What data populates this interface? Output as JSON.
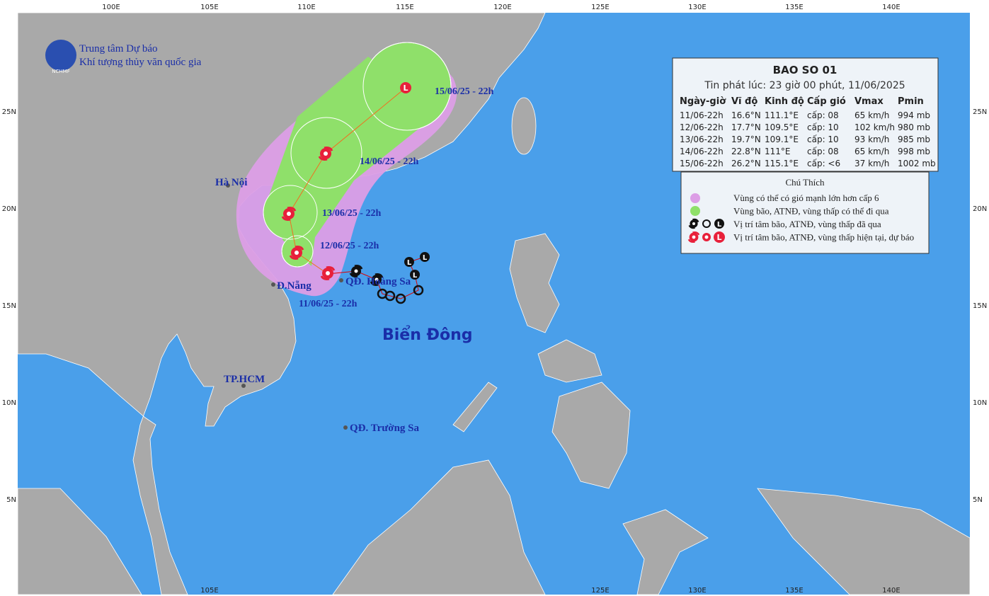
{
  "agency": {
    "line1": "Trung tâm Dự báo",
    "line2": "Khí tượng thủy văn quốc gia",
    "logo": "NCHMF"
  },
  "info": {
    "title": "BAO SO 01",
    "issued": "Tin phát lúc: 23 giờ 00 phút, 11/06/2025",
    "columns": [
      "Ngày-giờ",
      "Vĩ độ",
      "Kinh độ",
      "Cấp gió",
      "Vmax",
      "Pmin"
    ],
    "rows": [
      [
        "11/06-22h",
        "16.6°N",
        "111.1°E",
        "cấp: 08",
        "65 km/h",
        "994 mb"
      ],
      [
        "12/06-22h",
        "17.7°N",
        "109.5°E",
        "cấp: 10",
        "102 km/h",
        "980 mb"
      ],
      [
        "13/06-22h",
        "19.7°N",
        "109.1°E",
        "cấp: 10",
        "93 km/h",
        "985 mb"
      ],
      [
        "14/06-22h",
        "22.8°N",
        "111°E",
        "cấp: 08",
        "65 km/h",
        "998 mb"
      ],
      [
        "15/06-22h",
        "26.2°N",
        "115.1°E",
        "cấp: <6",
        "37 km/h",
        "1002 mb"
      ]
    ]
  },
  "legend": {
    "title": "Chú Thích",
    "items": [
      "Vùng có thể có gió mạnh lớn hơn cấp 6",
      "Vùng bão, ATNĐ, vùng thấp có thể đi qua",
      "Vị trí tâm bão, ATNĐ, vùng thấp đã qua",
      "Vị trí tâm bão, ATNĐ, vùng thấp hiện tại, dự báo"
    ]
  },
  "places": [
    "Hà Nội",
    "Đ.Nẵng",
    "QĐ. Hoàng Sa",
    "TP.HCM",
    "QĐ. Trường Sa"
  ],
  "sea_label": "Biển Đông",
  "track_labels": [
    "11/06/25 - 22h",
    "12/06/25 - 22h",
    "13/06/25 - 22h",
    "14/06/25 - 22h",
    "15/06/25 - 22h"
  ],
  "axes": {
    "top": [
      "100E",
      "105E",
      "110E",
      "115E",
      "120E",
      "125E",
      "130E",
      "135E",
      "140E"
    ],
    "bottom": [
      "105E",
      "125E",
      "130E",
      "135E",
      "140E"
    ],
    "left": [
      "25N",
      "20N",
      "15N",
      "10N",
      "5N"
    ],
    "right": [
      "25N",
      "20N",
      "15N",
      "10N",
      "5N"
    ]
  }
}
